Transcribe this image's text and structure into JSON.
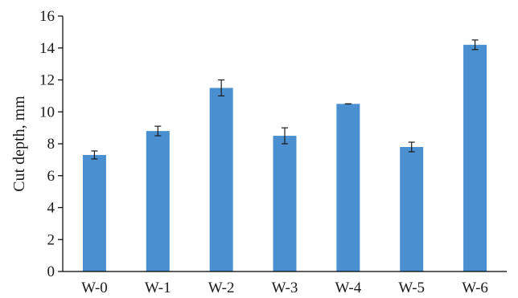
{
  "chart_data": {
    "type": "bar",
    "title": "",
    "xlabel": "",
    "ylabel": "Cut depth, mm",
    "ylim": [
      0,
      16
    ],
    "yticks": [
      0,
      2,
      4,
      6,
      8,
      10,
      12,
      14,
      16
    ],
    "categories": [
      "W-0",
      "W-1",
      "W-2",
      "W-3",
      "W-4",
      "W-5",
      "W-6"
    ],
    "values": [
      7.3,
      8.8,
      11.5,
      8.5,
      10.5,
      7.8,
      14.2
    ],
    "errors": [
      0.25,
      0.3,
      0.5,
      0.5,
      0.0,
      0.3,
      0.3
    ],
    "bar_color": "#4a90d0",
    "grid": false,
    "legend": "none"
  }
}
